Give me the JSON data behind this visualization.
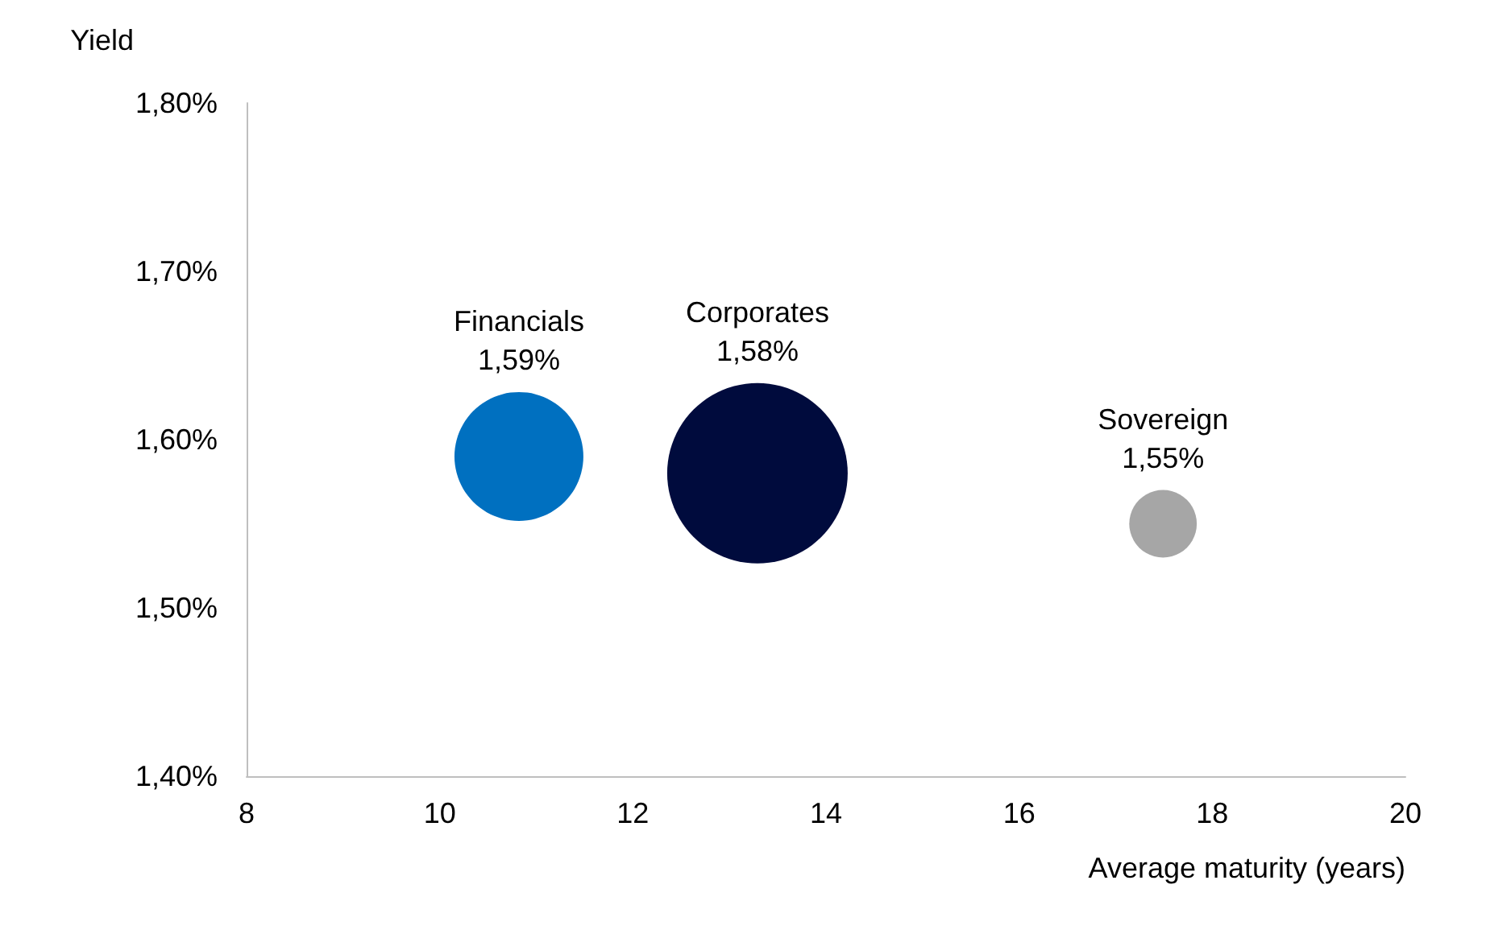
{
  "chart_data": {
    "type": "bubble",
    "xlabel": "Average maturity (years)",
    "ylabel": "Yield",
    "xlim": [
      8,
      20
    ],
    "xticks": [
      8,
      10,
      12,
      14,
      16,
      18,
      20
    ],
    "ylim": [
      1.4,
      1.8
    ],
    "yticks": [
      {
        "value": 1.4,
        "label": "1,40%"
      },
      {
        "value": 1.5,
        "label": "1,50%"
      },
      {
        "value": 1.6,
        "label": "1,60%"
      },
      {
        "value": 1.7,
        "label": "1,70%"
      },
      {
        "value": 1.8,
        "label": "1,80%"
      }
    ],
    "grid": false,
    "series": [
      {
        "name": "Financials",
        "color": "#0070c0",
        "x": [
          10.82
        ],
        "values": [
          1.59
        ],
        "sizes": [
          0.51
        ],
        "value_labels": [
          "1,59%"
        ]
      },
      {
        "name": "Corporates",
        "color": "#000b3d",
        "x": [
          13.29
        ],
        "values": [
          1.58
        ],
        "sizes": [
          1
        ],
        "value_labels": [
          "1,58%"
        ]
      },
      {
        "name": "Sovereign",
        "color": "#a6a6a6",
        "x": [
          17.49
        ],
        "values": [
          1.55
        ],
        "sizes": [
          0.14
        ],
        "value_labels": [
          "1,55%"
        ]
      }
    ]
  }
}
